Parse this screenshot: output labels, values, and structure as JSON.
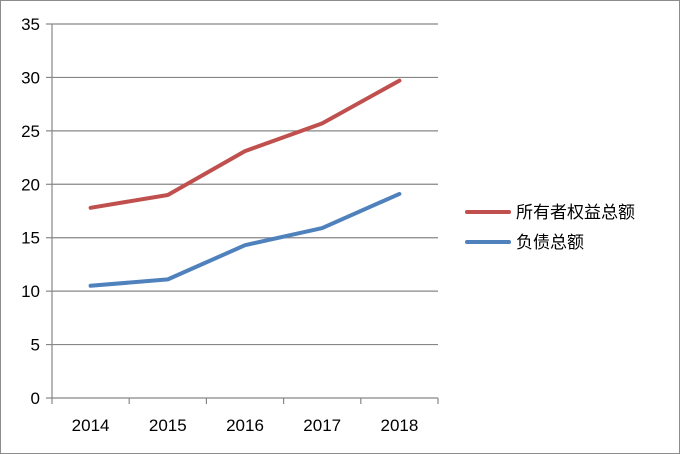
{
  "chart_data": {
    "type": "line",
    "categories": [
      "2014",
      "2015",
      "2016",
      "2017",
      "2018"
    ],
    "series": [
      {
        "name": "所有者权益总额",
        "color": "#c0504d",
        "values": [
          17.8,
          19.0,
          23.1,
          25.7,
          29.7
        ]
      },
      {
        "name": "负债总额",
        "color": "#4f81bd",
        "values": [
          10.5,
          11.1,
          14.3,
          15.9,
          19.1
        ]
      }
    ],
    "ylim": [
      0,
      35
    ],
    "yticks": [
      "0",
      "5",
      "10",
      "15",
      "20",
      "25",
      "30",
      "35"
    ],
    "grid": true,
    "legend_position": "right",
    "title": "",
    "xlabel": "",
    "ylabel": ""
  }
}
